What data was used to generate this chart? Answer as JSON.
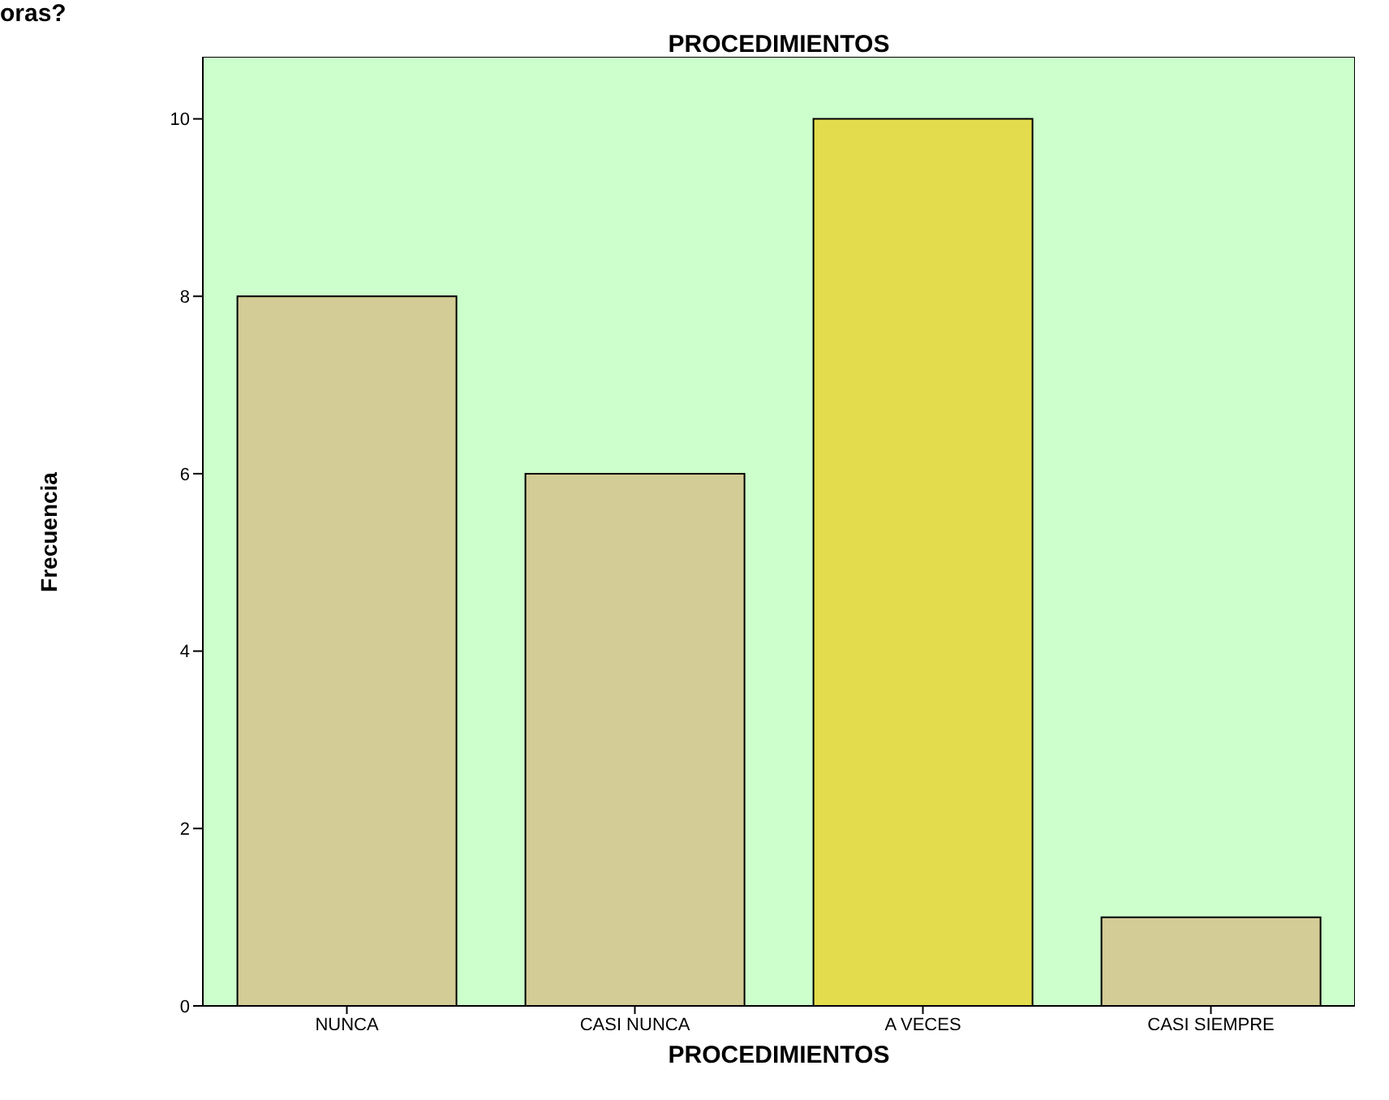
{
  "chart_data": {
    "type": "bar",
    "title": "PROCEDIMIENTOS",
    "xlabel": "PROCEDIMIENTOS",
    "ylabel": "Frecuencia",
    "annotations": [
      "oras?"
    ],
    "categories": [
      "NUNCA",
      "CASI NUNCA",
      "A VECES",
      "CASI SIEMPRE"
    ],
    "values": [
      8,
      6,
      10,
      1
    ],
    "colors": [
      "#d3cc96",
      "#d3cc96",
      "#e3dc4c",
      "#d3cc96"
    ],
    "ylim": [
      0,
      10.7
    ],
    "yticks": [
      0,
      2,
      4,
      6,
      8,
      10
    ]
  }
}
